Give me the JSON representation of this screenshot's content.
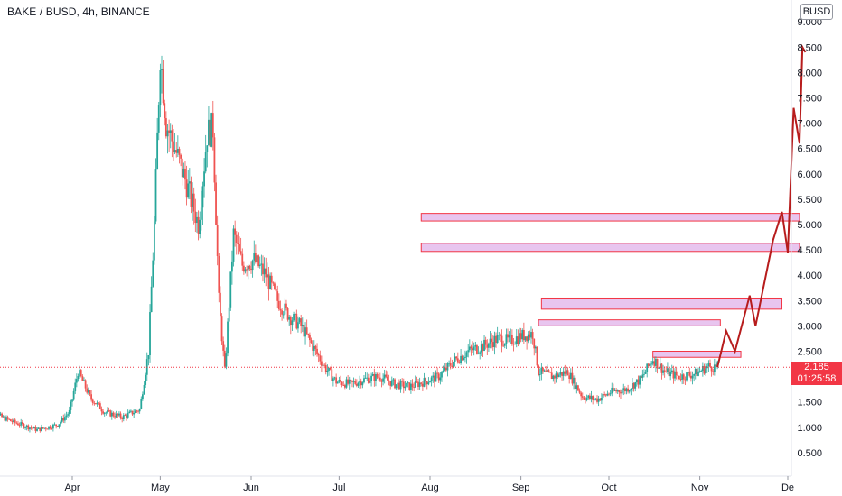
{
  "header": {
    "title": "BAKE / BUSD, 4h, BINANCE",
    "unit": "BUSD"
  },
  "last_price": {
    "value": "2.185",
    "countdown": "01:25:58"
  },
  "colors": {
    "up": "#26a69a",
    "down": "#ef5350",
    "zone_fill": "#e8c5ef",
    "zone_border": "#f23645",
    "projection": "#b71c1c",
    "price_line": "#f23645"
  },
  "chart_data": {
    "type": "line",
    "series": [
      {
        "values": [
          [
            "2021-03-02",
            1.5
          ],
          [
            "2021-03-06",
            1.25
          ],
          [
            "2021-03-12",
            1.1
          ],
          [
            "2021-03-20",
            0.95
          ],
          [
            "2021-03-27",
            1.05
          ],
          [
            "2021-03-31",
            1.3
          ],
          [
            "2021-04-03",
            2.1
          ],
          [
            "2021-04-07",
            1.6
          ],
          [
            "2021-04-12",
            1.3
          ],
          [
            "2021-04-18",
            1.2
          ],
          [
            "2021-04-24",
            1.35
          ],
          [
            "2021-04-27",
            2.5
          ],
          [
            "2021-04-29",
            5.0
          ],
          [
            "2021-05-01",
            8.4
          ],
          [
            "2021-05-03",
            7.0
          ],
          [
            "2021-05-06",
            6.5
          ],
          [
            "2021-05-10",
            5.8
          ],
          [
            "2021-05-14",
            5.0
          ],
          [
            "2021-05-17",
            6.8
          ],
          [
            "2021-05-19",
            6.9
          ],
          [
            "2021-05-21",
            3.5
          ],
          [
            "2021-05-23",
            2.1
          ],
          [
            "2021-05-26",
            4.8
          ],
          [
            "2021-05-29",
            4.2
          ],
          [
            "2021-06-02",
            4.3
          ],
          [
            "2021-06-06",
            4.0
          ],
          [
            "2021-06-10",
            3.5
          ],
          [
            "2021-06-14",
            3.2
          ],
          [
            "2021-06-18",
            3.0
          ],
          [
            "2021-06-22",
            2.6
          ],
          [
            "2021-06-26",
            2.2
          ],
          [
            "2021-06-30",
            1.9
          ],
          [
            "2021-07-05",
            1.85
          ],
          [
            "2021-07-10",
            1.95
          ],
          [
            "2021-07-15",
            2.0
          ],
          [
            "2021-07-20",
            1.85
          ],
          [
            "2021-07-25",
            1.8
          ],
          [
            "2021-07-30",
            1.9
          ],
          [
            "2021-08-04",
            2.0
          ],
          [
            "2021-08-09",
            2.3
          ],
          [
            "2021-08-14",
            2.5
          ],
          [
            "2021-08-19",
            2.6
          ],
          [
            "2021-08-24",
            2.75
          ],
          [
            "2021-08-28",
            2.7
          ],
          [
            "2021-09-01",
            2.8
          ],
          [
            "2021-09-05",
            2.85
          ],
          [
            "2021-09-07",
            2.1
          ],
          [
            "2021-09-12",
            2.0
          ],
          [
            "2021-09-17",
            2.1
          ],
          [
            "2021-09-22",
            1.6
          ],
          [
            "2021-09-27",
            1.55
          ],
          [
            "2021-10-02",
            1.7
          ],
          [
            "2021-10-07",
            1.75
          ],
          [
            "2021-10-12",
            1.95
          ],
          [
            "2021-10-16",
            2.35
          ],
          [
            "2021-10-20",
            2.1
          ],
          [
            "2021-10-25",
            2.0
          ],
          [
            "2021-10-30",
            2.05
          ],
          [
            "2021-11-04",
            2.2
          ],
          [
            "2021-11-07",
            2.185
          ]
        ]
      }
    ],
    "projection": [
      [
        "2021-11-07",
        2.185
      ],
      [
        "2021-11-10",
        2.9
      ],
      [
        "2021-11-13",
        2.5
      ],
      [
        "2021-11-18",
        3.6
      ],
      [
        "2021-11-20",
        3.0
      ],
      [
        "2021-11-26",
        4.7
      ],
      [
        "2021-11-29",
        5.25
      ],
      [
        "2021-12-01",
        4.45
      ],
      [
        "2021-12-03",
        7.3
      ],
      [
        "2021-12-05",
        6.6
      ],
      [
        "2021-12-06",
        8.5
      ],
      [
        "2021-12-07",
        8.4
      ]
    ],
    "zones": [
      {
        "from": "2021-07-29",
        "to": "2021-12-05",
        "low": 5.07,
        "high": 5.22
      },
      {
        "from": "2021-07-29",
        "to": "2021-12-05",
        "low": 4.47,
        "high": 4.63
      },
      {
        "from": "2021-09-08",
        "to": "2021-11-29",
        "low": 3.33,
        "high": 3.55
      },
      {
        "from": "2021-09-07",
        "to": "2021-11-08",
        "low": 3.0,
        "high": 3.12
      },
      {
        "from": "2021-10-16",
        "to": "2021-11-15",
        "low": 2.38,
        "high": 2.5
      }
    ],
    "ylim": [
      0,
      9.4
    ],
    "yticks": [
      "0.500",
      "1.000",
      "1.500",
      "2.000",
      "2.500",
      "3.000",
      "3.500",
      "4.000",
      "4.500",
      "5.000",
      "5.500",
      "6.000",
      "6.500",
      "7.000",
      "7.500",
      "8.000",
      "8.500",
      "9.000"
    ],
    "xticks": [
      {
        "label": "Apr",
        "date": "2021-04-01"
      },
      {
        "label": "May",
        "date": "2021-05-01"
      },
      {
        "label": "Jun",
        "date": "2021-06-01"
      },
      {
        "label": "Jul",
        "date": "2021-07-01"
      },
      {
        "label": "Aug",
        "date": "2021-08-01"
      },
      {
        "label": "Sep",
        "date": "2021-09-01"
      },
      {
        "label": "Oct",
        "date": "2021-10-01"
      },
      {
        "label": "Nov",
        "date": "2021-11-01"
      },
      {
        "label": "De",
        "date": "2021-12-01"
      }
    ],
    "grid": false
  }
}
